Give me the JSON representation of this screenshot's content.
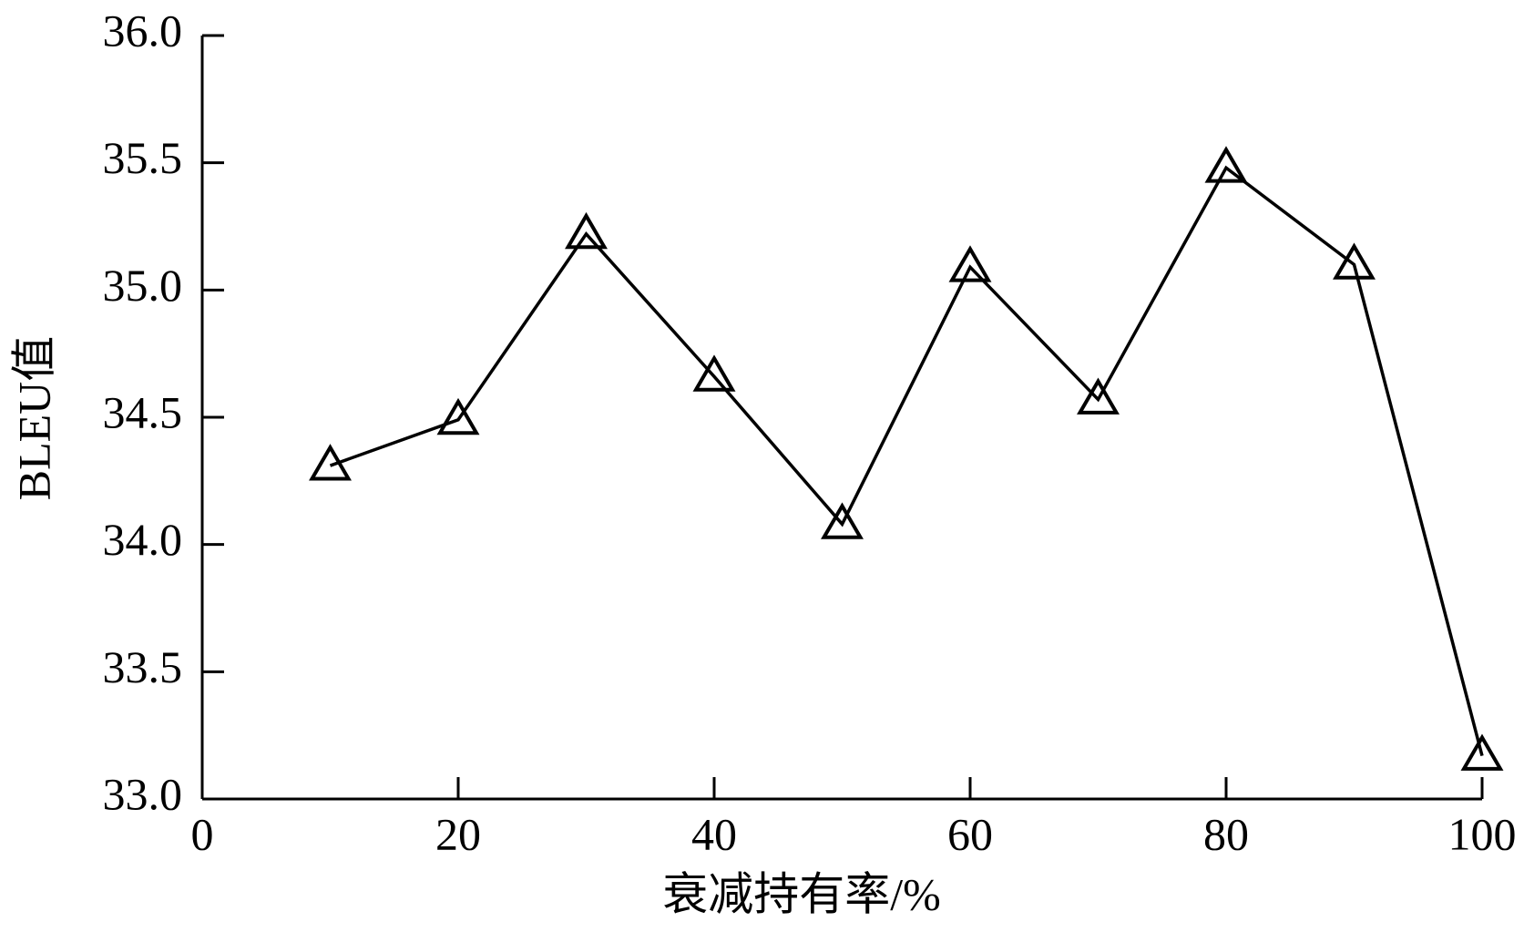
{
  "chart_data": {
    "type": "line",
    "x_label": "衰减持有率/%",
    "y_label": "BLEU值",
    "x": [
      10,
      20,
      30,
      40,
      50,
      60,
      70,
      80,
      90,
      100
    ],
    "series": [
      {
        "color": "#000000",
        "marker": "triangle",
        "values": [
          34.31,
          34.49,
          35.22,
          34.66,
          34.08,
          35.09,
          34.57,
          35.48,
          35.1,
          33.17
        ]
      }
    ],
    "xlim": [
      0,
      100
    ],
    "xticks": [
      0,
      20,
      40,
      60,
      80,
      100
    ],
    "ylim": [
      33,
      36
    ],
    "yticks": [
      {
        "value": 33,
        "label": "33.0"
      },
      {
        "value": 33.5,
        "label": "33.5"
      },
      {
        "value": 34,
        "label": "34.0"
      },
      {
        "value": 34.5,
        "label": "34.5"
      },
      {
        "value": 35,
        "label": "35.0"
      },
      {
        "value": 35.5,
        "label": "35.5"
      },
      {
        "value": 36,
        "label": "36.0"
      }
    ],
    "grid": false
  }
}
